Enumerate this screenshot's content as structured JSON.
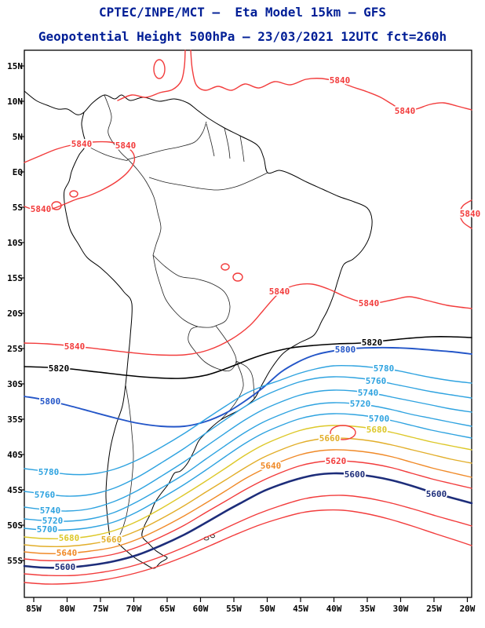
{
  "header": {
    "title_line1": "CPTEC/INPE/MCT –  Eta Model 15km – GFS",
    "title_line2": "Geopotential Height 500hPa – 23/03/2021 12UTC fct=260h",
    "title_color": "#001e96"
  },
  "axes": {
    "lat_ticks": [
      "15N",
      "10N",
      "5N",
      "EQ",
      "5S",
      "10S",
      "15S",
      "20S",
      "25S",
      "30S",
      "35S",
      "40S",
      "45S",
      "50S",
      "55S"
    ],
    "lon_ticks": [
      "85W",
      "80W",
      "75W",
      "70W",
      "65W",
      "60W",
      "55W",
      "50W",
      "45W",
      "40W",
      "35W",
      "30W",
      "25W",
      "20W"
    ]
  },
  "chart_data": {
    "type": "contour",
    "field": "Geopotential Height",
    "pressure_level": "500hPa",
    "institution": "CPTEC/INPE/MCT",
    "model": "Eta Model 15km",
    "driver": "GFS",
    "valid_date": "23/03/2021",
    "cycle": "12UTC",
    "forecast": "fct=260h",
    "base_map": "South America",
    "lon_range": [
      "85W",
      "20W"
    ],
    "lat_range": [
      "55S",
      "15N"
    ],
    "contour_interval": 20,
    "levels": [
      {
        "value": 5840,
        "color": "#f23c3c",
        "labeled": true
      },
      {
        "value": 5820,
        "color": "#000000",
        "labeled": true
      },
      {
        "value": 5800,
        "color": "#2456c8",
        "labeled": true
      },
      {
        "value": 5780,
        "color": "#2fa3e0",
        "labeled": true
      },
      {
        "value": 5760,
        "color": "#2fa3e0",
        "labeled": true
      },
      {
        "value": 5740,
        "color": "#2fa3e0",
        "labeled": true
      },
      {
        "value": 5720,
        "color": "#2fa3e0",
        "labeled": true
      },
      {
        "value": 5700,
        "color": "#2fa3e0",
        "labeled": true
      },
      {
        "value": 5680,
        "color": "#ddc829",
        "labeled": true
      },
      {
        "value": 5660,
        "color": "#e2ae2a",
        "labeled": true
      },
      {
        "value": 5640,
        "color": "#f08a28",
        "labeled": true
      },
      {
        "value": 5620,
        "color": "#f23c3c",
        "labeled": true
      },
      {
        "value": 5600,
        "color": "#1d2d7a",
        "labeled": true
      },
      {
        "value": 5580,
        "color": "#f23c3c",
        "labeled": false
      },
      {
        "value": 5560,
        "color": "#f23c3c",
        "labeled": false
      }
    ]
  }
}
